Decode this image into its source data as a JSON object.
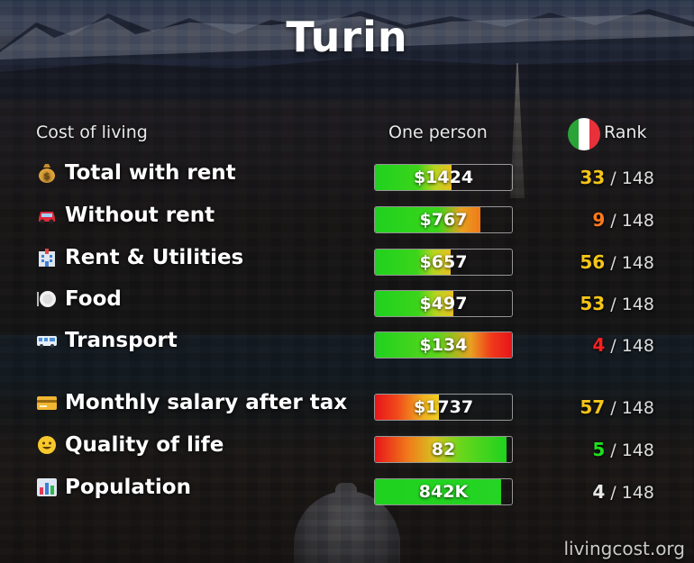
{
  "title": "Turin",
  "headers": {
    "cost": "Cost of living",
    "one_person": "One person",
    "rank": "Rank"
  },
  "flag_colors": [
    "#2aa437",
    "#ffffff",
    "#e8313a"
  ],
  "rank_total": "/ 148",
  "rows": [
    {
      "icon": "money-bag-icon",
      "label": "Total with rent",
      "value": "$1424",
      "fill": 0.56,
      "gradient": "green-yellow",
      "rank": "33",
      "rank_color": "#f5c518"
    },
    {
      "icon": "car-icon",
      "label": "Without rent",
      "value": "$767",
      "fill": 0.77,
      "gradient": "green-orange",
      "rank": "9",
      "rank_color": "#ff7a1a"
    },
    {
      "icon": "building-icon",
      "label": "Rent & Utilities",
      "value": "$657",
      "fill": 0.55,
      "gradient": "green-yellow",
      "rank": "56",
      "rank_color": "#f5c518"
    },
    {
      "icon": "plate-icon",
      "label": "Food",
      "value": "$497",
      "fill": 0.57,
      "gradient": "green-yellow",
      "rank": "53",
      "rank_color": "#f5c518"
    },
    {
      "icon": "bus-icon",
      "label": "Transport",
      "value": "$134",
      "fill": 1.0,
      "gradient": "green-red",
      "rank": "4",
      "rank_color": "#ff2020"
    },
    {
      "icon": "credit-card-icon",
      "label": "Monthly salary after tax",
      "value": "$1737",
      "fill": 0.47,
      "gradient": "red-yellow",
      "rank": "57",
      "rank_color": "#f5c518"
    },
    {
      "icon": "smiley-icon",
      "label": "Quality of life",
      "value": "82",
      "fill": 0.96,
      "gradient": "red-green",
      "rank": "5",
      "rank_color": "#1ee01e"
    },
    {
      "icon": "bar-chart-icon",
      "label": "Population",
      "value": "842K",
      "fill": 0.92,
      "gradient": "solid-green",
      "rank": "4",
      "rank_color": "#e8e8e8"
    }
  ],
  "watermark": "livingcost.org"
}
